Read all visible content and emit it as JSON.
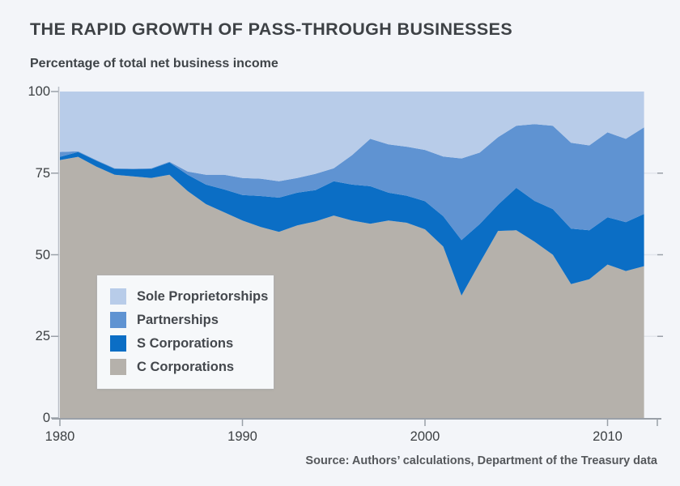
{
  "page": {
    "background": "#f3f5f9"
  },
  "chart_data": {
    "type": "area",
    "stacked": true,
    "title": "THE RAPID GROWTH OF PASS-THROUGH BUSINESSES",
    "subtitle": "Percentage of total net business income",
    "source": "Source: Authors’ calculations, Department of the Treasury data",
    "x": [
      1980,
      1981,
      1982,
      1983,
      1984,
      1985,
      1986,
      1987,
      1988,
      1989,
      1990,
      1991,
      1992,
      1993,
      1994,
      1995,
      1996,
      1997,
      1998,
      1999,
      2000,
      2001,
      2002,
      2003,
      2004,
      2005,
      2006,
      2007,
      2008,
      2009,
      2010,
      2011,
      2012
    ],
    "x_ticks": [
      1980,
      1990,
      2000,
      2010
    ],
    "y_ticks": [
      0,
      25,
      50,
      75,
      100
    ],
    "ylim": [
      0,
      100
    ],
    "legend_position": "lower-left",
    "grid": "faint-horizontal-under-areas",
    "series": [
      {
        "name": "Sole Proprietorships",
        "color": "#b8cce9",
        "values": [
          18.5,
          18.3,
          21,
          23.5,
          23.6,
          23.5,
          21.5,
          24.5,
          25.5,
          25.5,
          26.5,
          26.7,
          27.5,
          26.5,
          25.2,
          23.5,
          19.5,
          14.5,
          16.2,
          16.9,
          17.9,
          19.9,
          20.5,
          18.7,
          14,
          10.5,
          10,
          10.5,
          15.7,
          16.5,
          12.5,
          14.5,
          11
        ]
      },
      {
        "name": "Partnerships",
        "color": "#5f93d2",
        "values": [
          1.5,
          0.2,
          0.2,
          0.2,
          0.2,
          0.2,
          0.2,
          1,
          3,
          4.5,
          5.2,
          5.3,
          5,
          4.5,
          5,
          4,
          9,
          14.5,
          14.8,
          15,
          15.7,
          18.3,
          25,
          21.9,
          20.7,
          19,
          23.5,
          25.5,
          26.3,
          26,
          26,
          25.5,
          26.5
        ]
      },
      {
        "name": "S Corporations",
        "color": "#0b6ec5",
        "values": [
          1,
          1.5,
          1.8,
          1.8,
          2.2,
          2.8,
          3.8,
          5,
          6,
          7,
          7.8,
          9.5,
          10.5,
          10,
          9.6,
          10.5,
          11,
          11.5,
          8.5,
          8.3,
          8.6,
          9.3,
          17,
          11.9,
          8,
          13,
          12.5,
          14,
          17,
          15,
          14.5,
          15,
          16
        ]
      },
      {
        "name": "C Corporations",
        "color": "#b5b1ab",
        "values": [
          79,
          80,
          77,
          74.5,
          74,
          73.5,
          74.5,
          69.5,
          65.5,
          63,
          60.5,
          58.5,
          57,
          59,
          60.2,
          62,
          60.5,
          59.5,
          60.5,
          59.8,
          57.8,
          52.5,
          37.5,
          47.5,
          57.3,
          57.5,
          54,
          50,
          41,
          42.5,
          47,
          45,
          46.5
        ]
      }
    ],
    "axis_colors": {
      "bottom_axis": "#9aa0a8",
      "left_axis": "#b9bec6",
      "gridline": "#e2e5ec"
    }
  }
}
